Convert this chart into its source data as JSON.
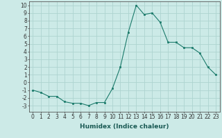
{
  "x": [
    0,
    1,
    2,
    3,
    4,
    5,
    6,
    7,
    8,
    9,
    10,
    11,
    12,
    13,
    14,
    15,
    16,
    17,
    18,
    19,
    20,
    21,
    22,
    23
  ],
  "y": [
    -1,
    -1.3,
    -1.8,
    -1.8,
    -2.5,
    -2.7,
    -2.7,
    -3.0,
    -2.6,
    -2.6,
    -0.8,
    2.0,
    6.5,
    10.0,
    8.8,
    9.0,
    7.8,
    5.2,
    5.2,
    4.5,
    4.5,
    3.8,
    2.0,
    1.0
  ],
  "line_color": "#1a7a6a",
  "marker": "s",
  "marker_size": 2,
  "bg_color": "#cceae7",
  "grid_color": "#aed4d0",
  "xlabel": "Humidex (Indice chaleur)",
  "ylim": [
    -3.8,
    10.5
  ],
  "xlim": [
    -0.5,
    23.5
  ],
  "yticks": [
    -3,
    -2,
    -1,
    0,
    1,
    2,
    3,
    4,
    5,
    6,
    7,
    8,
    9,
    10
  ],
  "xticks": [
    0,
    1,
    2,
    3,
    4,
    5,
    6,
    7,
    8,
    9,
    10,
    11,
    12,
    13,
    14,
    15,
    16,
    17,
    18,
    19,
    20,
    21,
    22,
    23
  ],
  "tick_fontsize": 5.5,
  "label_fontsize": 6.5
}
